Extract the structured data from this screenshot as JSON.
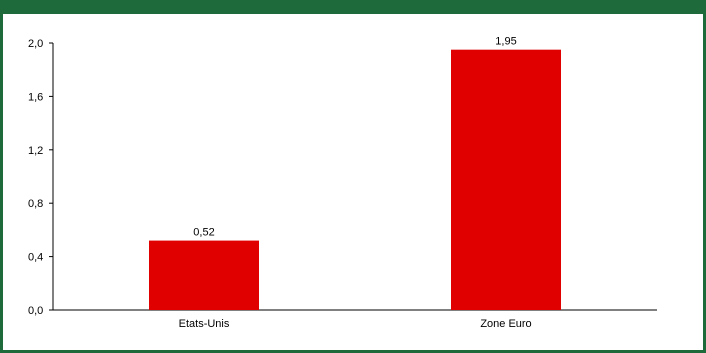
{
  "header": {
    "title": "",
    "color": "#1e6a3a"
  },
  "colors": {
    "bar": "#e00000",
    "axis": "#000000"
  },
  "chart_data": {
    "type": "bar",
    "title": "",
    "xlabel": "",
    "ylabel": "",
    "categories": [
      "Etats-Unis",
      "Zone Euro"
    ],
    "values": [
      0.52,
      1.95
    ],
    "value_labels": [
      "0,52",
      "1,95"
    ],
    "ylim": [
      0,
      2
    ],
    "yticks": [
      0,
      0.4,
      0.8,
      1.2,
      1.6,
      2.0
    ],
    "ytick_labels": [
      "0,0",
      "0,4",
      "0,8",
      "1,2",
      "1,6",
      "2,0"
    ],
    "grid": false,
    "legend": "none"
  }
}
